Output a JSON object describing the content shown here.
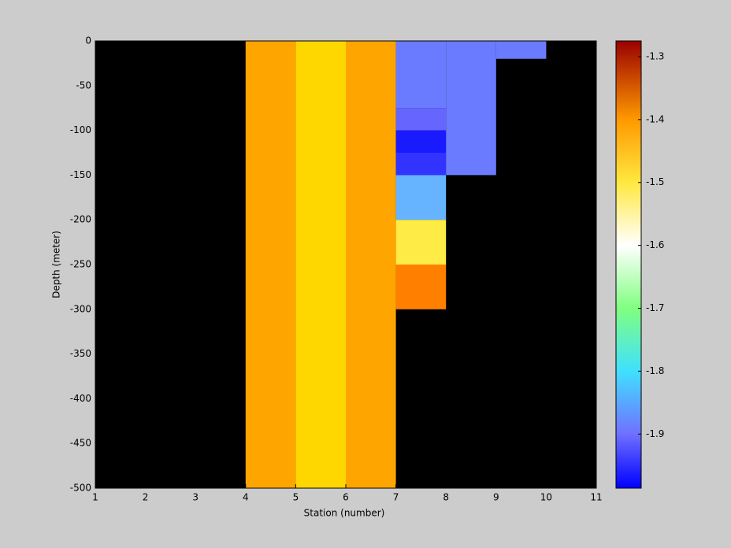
{
  "chart_data": {
    "type": "heatmap",
    "x_label": "Station (number)",
    "y_label": "Depth (meter)",
    "xlim": [
      1,
      11
    ],
    "xticks": [
      1,
      2,
      3,
      4,
      5,
      6,
      7,
      8,
      9,
      10,
      11
    ],
    "ylim": [
      -500,
      0
    ],
    "yticks": [
      0,
      -50,
      -100,
      -150,
      -200,
      -250,
      -300,
      -350,
      -400,
      -450,
      -500
    ],
    "background": "#000000",
    "cells": [
      {
        "x0": 4,
        "x1": 5,
        "y0": -500,
        "y1": 0,
        "value": -1.42,
        "color": "#ffa500"
      },
      {
        "x0": 5,
        "x1": 6,
        "y0": -500,
        "y1": 0,
        "value": -1.47,
        "color": "#ffd700"
      },
      {
        "x0": 6,
        "x1": 7,
        "y0": -500,
        "y1": 0,
        "value": -1.42,
        "color": "#ffa500"
      },
      {
        "x0": 7,
        "x1": 8,
        "y0": -75,
        "y1": 0,
        "value": -1.89,
        "color": "#6b7bff"
      },
      {
        "x0": 7,
        "x1": 8,
        "y0": -100,
        "y1": -75,
        "value": -1.91,
        "color": "#6666ff"
      },
      {
        "x0": 7,
        "x1": 8,
        "y0": -125,
        "y1": -100,
        "value": -1.96,
        "color": "#1a1aff"
      },
      {
        "x0": 7,
        "x1": 8,
        "y0": -150,
        "y1": -125,
        "value": -1.94,
        "color": "#3333ff"
      },
      {
        "x0": 7,
        "x1": 8,
        "y0": -200,
        "y1": -150,
        "value": -1.83,
        "color": "#66b3ff"
      },
      {
        "x0": 7,
        "x1": 8,
        "y0": -250,
        "y1": -200,
        "value": -1.52,
        "color": "#ffeb45"
      },
      {
        "x0": 7,
        "x1": 8,
        "y0": -300,
        "y1": -250,
        "value": -1.37,
        "color": "#ff8000"
      },
      {
        "x0": 8,
        "x1": 9,
        "y0": -150,
        "y1": 0,
        "value": -1.89,
        "color": "#6b7bff"
      },
      {
        "x0": 9,
        "x1": 10,
        "y0": -20,
        "y1": 0,
        "value": -1.89,
        "color": "#6b7bff"
      }
    ],
    "clim": [
      -1.986,
      -1.275
    ],
    "cticks": [
      -1.3,
      -1.4,
      -1.5,
      -1.6,
      -1.7,
      -1.8,
      -1.9
    ],
    "colormap": [
      {
        "value": -1.986,
        "color": "#0000ff"
      },
      {
        "value": -1.9,
        "color": "#7070ff"
      },
      {
        "value": -1.8,
        "color": "#40e0ff"
      },
      {
        "value": -1.7,
        "color": "#80ff80"
      },
      {
        "value": -1.6,
        "color": "#ffffff"
      },
      {
        "value": -1.5,
        "color": "#ffe840"
      },
      {
        "value": -1.4,
        "color": "#ff9900"
      },
      {
        "value": -1.275,
        "color": "#990000"
      }
    ]
  }
}
